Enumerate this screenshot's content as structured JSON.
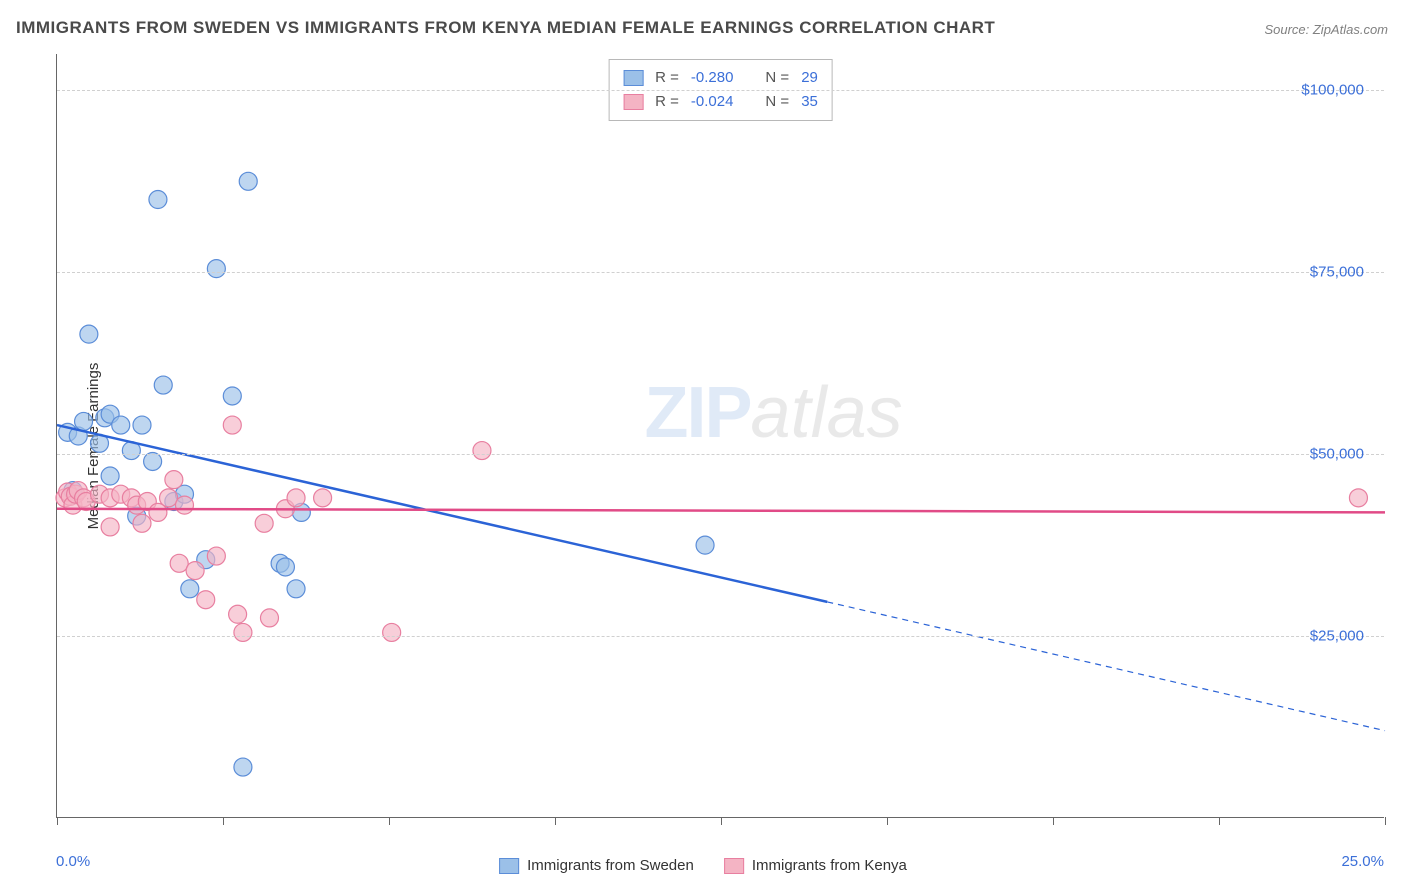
{
  "title": "IMMIGRANTS FROM SWEDEN VS IMMIGRANTS FROM KENYA MEDIAN FEMALE EARNINGS CORRELATION CHART",
  "source": "Source: ZipAtlas.com",
  "watermark": {
    "zip": "ZIP",
    "atlas": "atlas"
  },
  "chart": {
    "type": "scatter",
    "ylabel": "Median Female Earnings",
    "xlim": [
      0,
      25
    ],
    "ylim": [
      0,
      105000
    ],
    "x_min_label": "0.0%",
    "x_max_label": "25.0%",
    "y_gridlines": [
      25000,
      50000,
      75000,
      100000
    ],
    "y_gridline_labels": [
      "$25,000",
      "$50,000",
      "$75,000",
      "$100,000"
    ],
    "x_ticks": [
      0,
      3.125,
      6.25,
      9.375,
      12.5,
      15.625,
      18.75,
      21.875,
      25
    ],
    "background_color": "#ffffff",
    "grid_color": "#d0d0d0",
    "axis_color": "#666666",
    "axis_label_color": "#3b6fd8",
    "series": [
      {
        "name": "Immigrants from Sweden",
        "marker_fill": "#9bc0e8",
        "marker_stroke": "#5b8dd8",
        "marker_opacity": 0.65,
        "marker_radius": 9,
        "line_color": "#2b63d6",
        "line_width": 2.5,
        "trend": {
          "x1": 0,
          "y1": 54000,
          "x2_solid": 14.5,
          "y2_solid": 29700,
          "x2": 25,
          "y2": 12000
        },
        "points": [
          [
            0.2,
            53000
          ],
          [
            0.3,
            45000
          ],
          [
            0.4,
            52500
          ],
          [
            0.5,
            54500
          ],
          [
            0.6,
            66500
          ],
          [
            0.8,
            51500
          ],
          [
            0.9,
            55000
          ],
          [
            1.0,
            55500
          ],
          [
            1.0,
            47000
          ],
          [
            1.2,
            54000
          ],
          [
            1.4,
            50500
          ],
          [
            1.5,
            41500
          ],
          [
            1.6,
            54000
          ],
          [
            1.8,
            49000
          ],
          [
            1.9,
            85000
          ],
          [
            2.0,
            59500
          ],
          [
            2.2,
            43500
          ],
          [
            2.4,
            44500
          ],
          [
            2.5,
            31500
          ],
          [
            2.8,
            35500
          ],
          [
            3.0,
            75500
          ],
          [
            3.3,
            58000
          ],
          [
            3.5,
            7000
          ],
          [
            3.6,
            87500
          ],
          [
            4.2,
            35000
          ],
          [
            4.3,
            34500
          ],
          [
            4.5,
            31500
          ],
          [
            4.6,
            42000
          ],
          [
            12.2,
            37500
          ]
        ]
      },
      {
        "name": "Immigrants from Kenya",
        "marker_fill": "#f4b4c4",
        "marker_stroke": "#e87fa0",
        "marker_opacity": 0.65,
        "marker_radius": 9,
        "line_color": "#e14b87",
        "line_width": 2.5,
        "trend": {
          "x1": 0,
          "y1": 42500,
          "x2_solid": 25,
          "y2_solid": 42000,
          "x2": 25,
          "y2": 42000
        },
        "points": [
          [
            0.15,
            44000
          ],
          [
            0.2,
            44800
          ],
          [
            0.25,
            44200
          ],
          [
            0.3,
            43000
          ],
          [
            0.35,
            44500
          ],
          [
            0.4,
            45000
          ],
          [
            0.5,
            44000
          ],
          [
            0.55,
            43500
          ],
          [
            0.8,
            44500
          ],
          [
            1.0,
            44000
          ],
          [
            1.0,
            40000
          ],
          [
            1.2,
            44500
          ],
          [
            1.4,
            44000
          ],
          [
            1.5,
            43000
          ],
          [
            1.6,
            40500
          ],
          [
            1.7,
            43500
          ],
          [
            1.9,
            42000
          ],
          [
            2.1,
            44000
          ],
          [
            2.2,
            46500
          ],
          [
            2.3,
            35000
          ],
          [
            2.4,
            43000
          ],
          [
            2.6,
            34000
          ],
          [
            2.8,
            30000
          ],
          [
            3.0,
            36000
          ],
          [
            3.3,
            54000
          ],
          [
            3.4,
            28000
          ],
          [
            3.5,
            25500
          ],
          [
            3.9,
            40500
          ],
          [
            4.0,
            27500
          ],
          [
            4.3,
            42500
          ],
          [
            4.5,
            44000
          ],
          [
            5.0,
            44000
          ],
          [
            6.3,
            25500
          ],
          [
            8.0,
            50500
          ],
          [
            24.5,
            44000
          ]
        ]
      }
    ]
  },
  "stats_box": {
    "rows": [
      {
        "swatch_fill": "#9bc0e8",
        "swatch_border": "#5b8dd8",
        "r_label": "R =",
        "r_val": "-0.280",
        "n_label": "N =",
        "n_val": "29"
      },
      {
        "swatch_fill": "#f4b4c4",
        "swatch_border": "#e87fa0",
        "r_label": "R =",
        "r_val": "-0.024",
        "n_label": "N =",
        "n_val": "35"
      }
    ]
  },
  "bottom_legend": [
    {
      "swatch_fill": "#9bc0e8",
      "swatch_border": "#5b8dd8",
      "label": "Immigrants from Sweden"
    },
    {
      "swatch_fill": "#f4b4c4",
      "swatch_border": "#e87fa0",
      "label": "Immigrants from Kenya"
    }
  ]
}
